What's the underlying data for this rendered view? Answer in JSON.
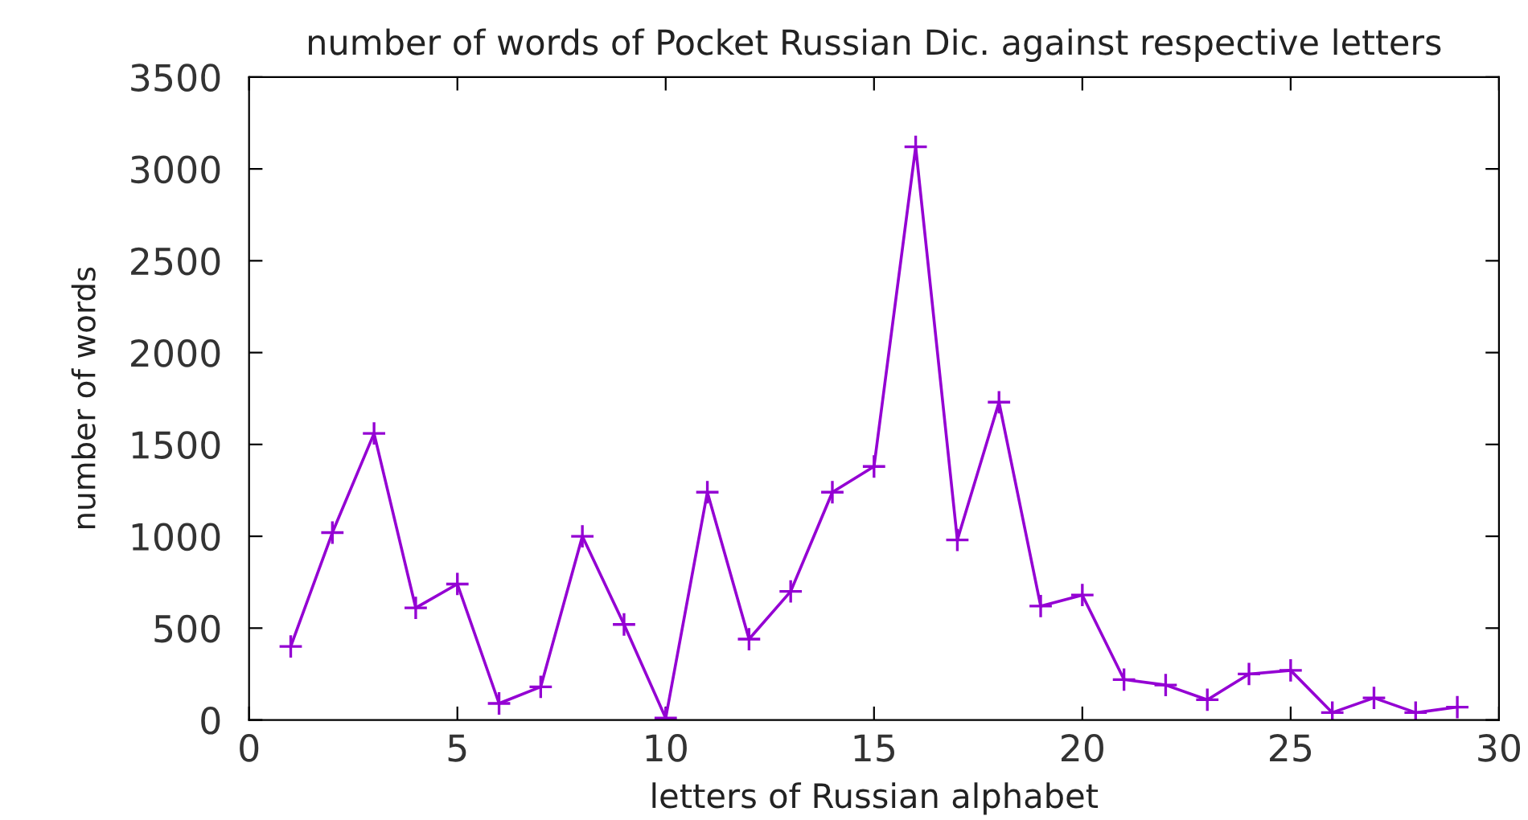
{
  "chart_data": {
    "type": "line",
    "title": "number of words of Pocket Russian Dic. against respective letters",
    "xlabel": "letters of Russian alphabet",
    "ylabel": "number of words",
    "x": [
      1,
      2,
      3,
      4,
      5,
      6,
      7,
      8,
      9,
      10,
      11,
      12,
      13,
      14,
      15,
      16,
      17,
      18,
      19,
      20,
      21,
      22,
      23,
      24,
      25,
      26,
      27,
      28,
      29
    ],
    "series": [
      {
        "color": "#9400d3",
        "values": [
          400,
          1020,
          1560,
          610,
          740,
          90,
          180,
          1000,
          520,
          10,
          1240,
          440,
          700,
          1240,
          1380,
          3120,
          980,
          1730,
          620,
          680,
          220,
          190,
          110,
          250,
          270,
          40,
          120,
          40,
          70
        ]
      }
    ],
    "xlim": [
      0,
      30
    ],
    "xticks": [
      0,
      5,
      10,
      15,
      20,
      25,
      30
    ],
    "ylim": [
      0,
      3500
    ],
    "yticks": [
      0,
      500,
      1000,
      1500,
      2000,
      2500,
      3000,
      3500
    ],
    "grid": false,
    "marker": "cross",
    "line_style": "solid"
  }
}
